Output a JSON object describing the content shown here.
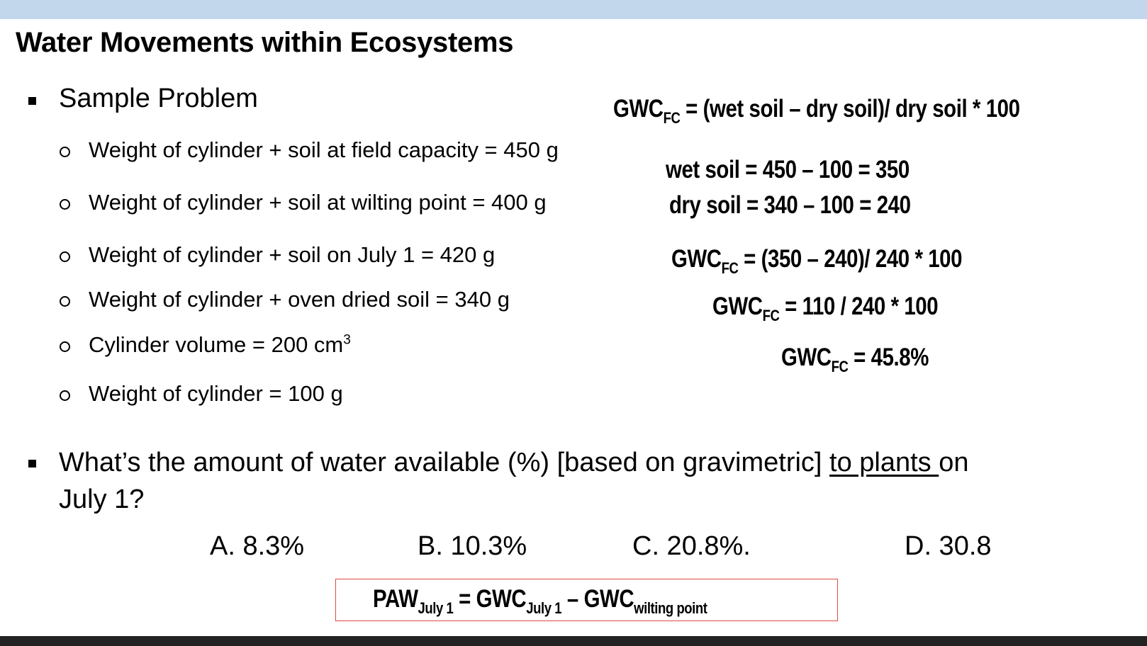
{
  "slide": {
    "title": "Water Movements within Ecosystems",
    "bullet1": "Sample Problem",
    "items": [
      "Weight of cylinder + soil at field capacity = 450 g",
      "Weight of cylinder + soil at wilting point = 400 g",
      "Weight of cylinder + soil on July 1 = 420 g",
      "Weight of cylinder + oven dried soil = 340 g",
      "Cylinder volume = 200 cm",
      "Weight of cylinder = 100 g"
    ],
    "volume_exponent": "3",
    "formulas": {
      "gwc": "GWC",
      "fc": "FC",
      "f1_rest": "= (wet soil – dry soil)/ dry soil * 100",
      "wet": "wet soil = 450 – 100 = 350",
      "dry": "dry soil = 340 – 100 = 240",
      "f2_rest": "= (350 – 240)/ 240 * 100",
      "f3_rest": "= 110 / 240 * 100",
      "f4_rest": "= 45.8%"
    },
    "question": {
      "part1": "What’s the amount of water available (%) [based on gravimetric] ",
      "underlined": "to plants ",
      "part2": "on",
      "line2": "July 1?"
    },
    "answers": [
      "A. 8.3%",
      "B. 10.3%",
      "C. 20.8%.",
      "D. 30.8"
    ],
    "paw": {
      "paw": "PAW",
      "july1": "July 1",
      "eq": " = GWC",
      "minus": " –  GWC",
      "wilting": "wilting point"
    },
    "colors": {
      "top_bar": "#c3d7ec",
      "box_border": "#e04a3f",
      "bottom_bar": "#232323"
    }
  }
}
